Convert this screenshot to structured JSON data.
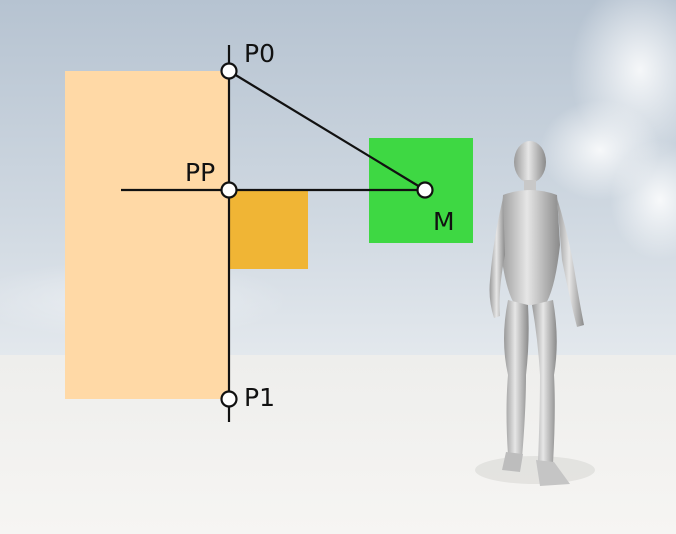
{
  "points": {
    "p0": "P0",
    "pp": "PP",
    "m": "M",
    "p1": "P1"
  },
  "figure": {
    "icon": "humanoid-figure-icon"
  },
  "colors": {
    "sky_top": "#b9c6d3",
    "sky_bottom": "#dce3ea",
    "ground": "#f2f1ef",
    "plane": "#ffd9a6",
    "small_box": "#f0b535",
    "marker_box": "#3ed843",
    "line": "#111111",
    "point_fill": "#ffffff"
  }
}
